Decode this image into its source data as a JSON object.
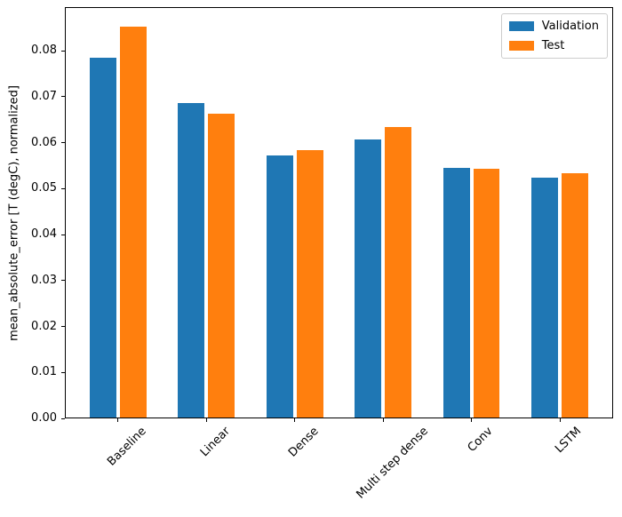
{
  "figure": {
    "background": "#ffffff"
  },
  "chart_data": {
    "type": "bar",
    "title": "",
    "xlabel": "",
    "ylabel": "mean_absolute_error [T (degC), normalized]",
    "categories": [
      "Baseline",
      "Linear",
      "Dense",
      "Multi step dense",
      "Conv",
      "LSTM"
    ],
    "series": [
      {
        "name": "Validation",
        "color": "#1f77b4",
        "values": [
          0.0785,
          0.0686,
          0.0572,
          0.0607,
          0.0545,
          0.0524
        ]
      },
      {
        "name": "Test",
        "color": "#ff7f0e",
        "values": [
          0.0852,
          0.0663,
          0.0583,
          0.0633,
          0.0542,
          0.0533
        ]
      }
    ],
    "ylim": [
      0,
      0.0895
    ],
    "ytick_values": [
      0.0,
      0.01,
      0.02,
      0.03,
      0.04,
      0.05,
      0.06,
      0.07,
      0.08
    ],
    "ytick_labels": [
      "0.00",
      "0.01",
      "0.02",
      "0.03",
      "0.04",
      "0.05",
      "0.06",
      "0.07",
      "0.08"
    ],
    "bar_width": 0.3,
    "bar_offset": 0.17,
    "x_margin": 0.602,
    "grid": false,
    "legend_position": "upper right",
    "xtick_rotation": -45
  },
  "legend": {
    "items": [
      {
        "label": "Validation",
        "color": "#1f77b4"
      },
      {
        "label": "Test",
        "color": "#ff7f0e"
      }
    ]
  }
}
